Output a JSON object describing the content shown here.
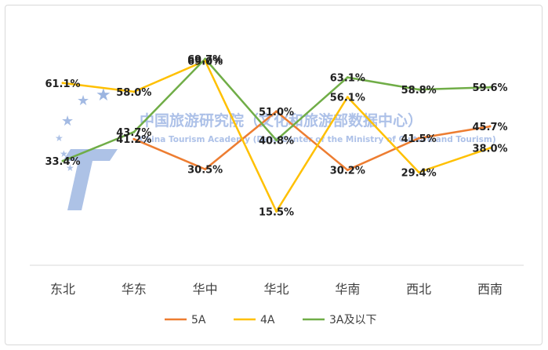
{
  "chart_data": {
    "type": "line",
    "categories": [
      "东北",
      "华东",
      "华中",
      "华北",
      "华南",
      "西北",
      "西南"
    ],
    "series": [
      {
        "name": "5A",
        "color": "#ed7d31",
        "values": [
          null,
          41.2,
          30.5,
          51.0,
          30.2,
          41.5,
          45.7
        ]
      },
      {
        "name": "4A",
        "color": "#ffc000",
        "values": [
          61.1,
          58.0,
          69.0,
          15.5,
          56.1,
          29.4,
          38.0
        ]
      },
      {
        "name": "3A及以下",
        "color": "#70ad47",
        "values": [
          33.4,
          43.7,
          69.7,
          40.8,
          63.1,
          58.8,
          59.6
        ]
      }
    ],
    "ylim": [
      0,
      80
    ],
    "grid": false,
    "legend": "bottom"
  },
  "watermark": {
    "text_cn": "中国旅游研究院（文化和旅游部数据中心）",
    "text_en": "China Tourism Academy (Data Center of the Ministry of Culture and Tourism)"
  }
}
